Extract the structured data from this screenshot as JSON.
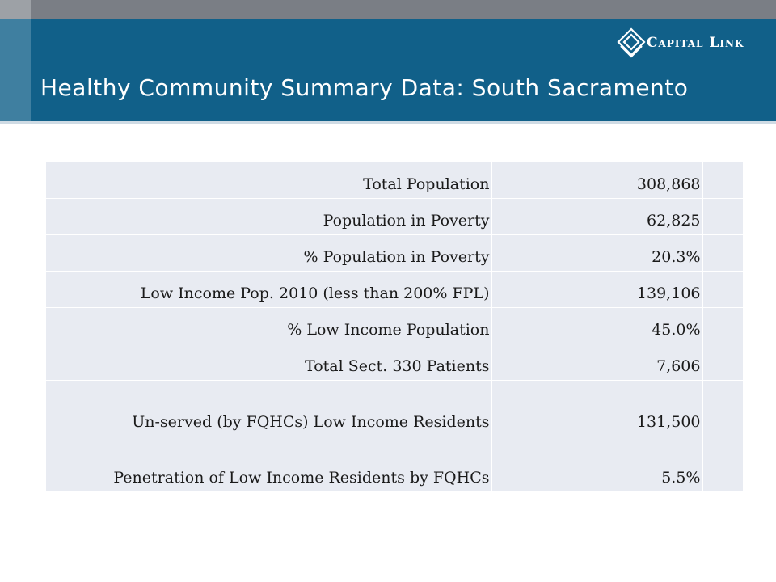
{
  "slide": {
    "title": "Healthy Community Summary Data:  South Sacramento",
    "logo": {
      "text": "Capital Link",
      "icon": "diamond-logo-icon"
    }
  },
  "table": {
    "rows": [
      {
        "label": "Total Population",
        "value": "308,868",
        "extra": ""
      },
      {
        "label": "Population in Poverty",
        "value": "62,825",
        "extra": ""
      },
      {
        "label": "% Population in Poverty",
        "value": "20.3%",
        "extra": ""
      },
      {
        "label": "Low Income Pop. 2010 (less than 200% FPL)",
        "value": "139,106",
        "extra": ""
      },
      {
        "label": "% Low Income Population",
        "value": "45.0%",
        "extra": ""
      },
      {
        "label": "Total Sect. 330 Patients",
        "value": "7,606",
        "extra": ""
      },
      {
        "label": "Un-served (by FQHCs) Low Income Residents",
        "value": "131,500",
        "extra": ""
      },
      {
        "label": "Penetration of Low Income Residents by FQHCs",
        "value": "5.5%",
        "extra": ""
      }
    ]
  },
  "colors": {
    "header_band": "#116089",
    "top_bar": "#7a7e85",
    "table_fill": "#e8ebf2"
  }
}
